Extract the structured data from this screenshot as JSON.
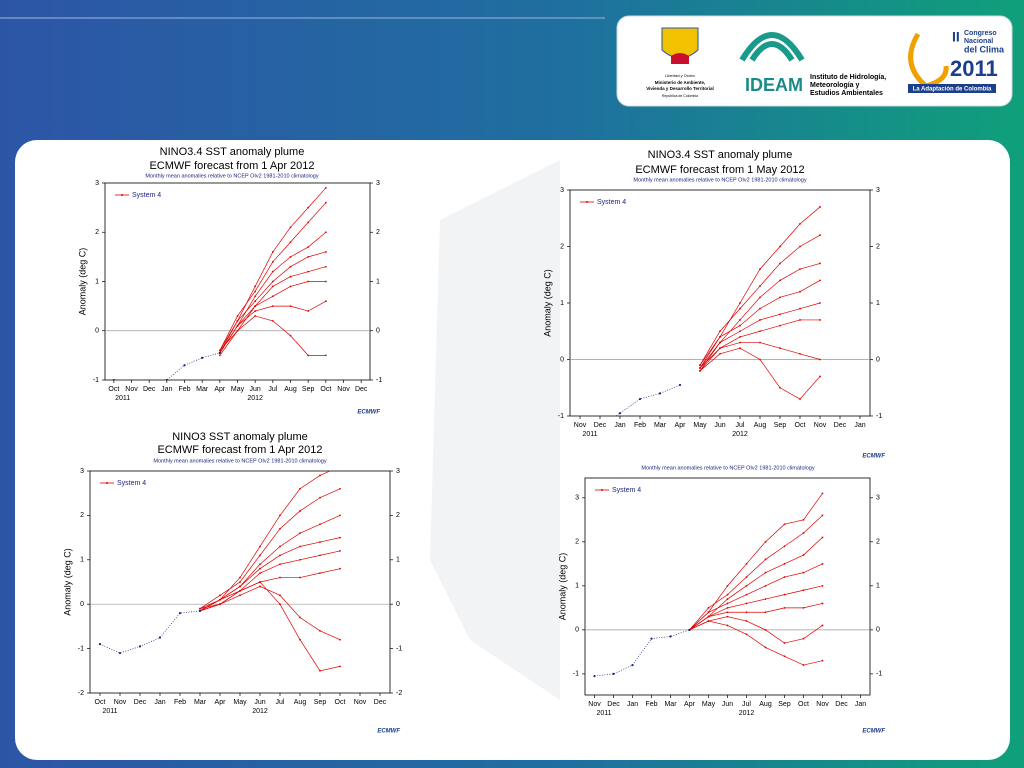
{
  "header": {
    "ministry": [
      "Libertad y Orden",
      "Ministerio de Ambiente,",
      "Vivienda y Desarrollo Territorial",
      "República de Colombia"
    ],
    "ideam": "IDEAM",
    "ideam_name": [
      "Instituto de Hidrología,",
      "Meteorología y",
      "Estudios Ambientales"
    ],
    "congress": [
      "II",
      "Congreso",
      "Nacional",
      "del Clima",
      "2011"
    ],
    "congress_tagline": "La Adaptación de Colombia"
  },
  "chart_data": [
    {
      "type": "plume",
      "title": [
        "NINO3.4 SST anomaly plume",
        "ECMWF forecast from 1 Apr 2012"
      ],
      "subtitle": "Monthly mean anomalies relative to NCEP OIv2 1981-2010 climatology",
      "y_label": "Anomaly (deg C)",
      "legend": "System 4",
      "source": "ECMWF",
      "categories": [
        "Oct",
        "Nov",
        "Dec",
        "Jan",
        "Feb",
        "Mar",
        "Apr",
        "May",
        "Jun",
        "Jul",
        "Aug",
        "Sep",
        "Oct",
        "Nov",
        "Dec"
      ],
      "year_labels": [
        "2011",
        "2012"
      ],
      "ylim": [
        -1,
        3
      ],
      "yticks": [
        -1,
        0,
        1,
        2,
        3
      ],
      "zero_line": true,
      "observed": {
        "color": "#1a237e",
        "values": [
          -1.0,
          -1.1,
          -1.2,
          -1.0,
          -0.7,
          -0.55,
          -0.45,
          null,
          null,
          null,
          null,
          null,
          null,
          null,
          null
        ]
      },
      "ensemble": {
        "color": "#e00000",
        "members": [
          [
            null,
            null,
            null,
            null,
            null,
            null,
            -0.45,
            0.2,
            0.9,
            1.6,
            2.1,
            2.5,
            2.9,
            null,
            null
          ],
          [
            null,
            null,
            null,
            null,
            null,
            null,
            -0.4,
            0.3,
            0.8,
            1.4,
            1.8,
            2.2,
            2.6,
            null,
            null
          ],
          [
            null,
            null,
            null,
            null,
            null,
            null,
            -0.45,
            0.1,
            0.7,
            1.2,
            1.5,
            1.7,
            2.0,
            null,
            null
          ],
          [
            null,
            null,
            null,
            null,
            null,
            null,
            -0.4,
            0.2,
            0.6,
            1.0,
            1.3,
            1.5,
            1.6,
            null,
            null
          ],
          [
            null,
            null,
            null,
            null,
            null,
            null,
            -0.45,
            0.1,
            0.5,
            0.9,
            1.1,
            1.2,
            1.3,
            null,
            null
          ],
          [
            null,
            null,
            null,
            null,
            null,
            null,
            -0.5,
            0.0,
            0.5,
            0.7,
            0.9,
            1.0,
            1.0,
            null,
            null
          ],
          [
            null,
            null,
            null,
            null,
            null,
            null,
            -0.45,
            0.1,
            0.4,
            0.5,
            0.5,
            0.4,
            0.6,
            null,
            null
          ],
          [
            null,
            null,
            null,
            null,
            null,
            null,
            -0.4,
            0.0,
            0.3,
            0.2,
            -0.1,
            -0.5,
            -0.5,
            null,
            null
          ]
        ]
      }
    },
    {
      "type": "plume",
      "title": [
        "NINO3.4 SST anomaly plume",
        "ECMWF forecast from 1 May 2012"
      ],
      "subtitle": "Monthly mean anomalies relative to NCEP OIv2 1981-2010 climatology",
      "y_label": "Anomaly (deg C)",
      "legend": "System 4",
      "source": "ECMWF",
      "categories": [
        "Nov",
        "Dec",
        "Jan",
        "Feb",
        "Mar",
        "Apr",
        "May",
        "Jun",
        "Jul",
        "Aug",
        "Sep",
        "Oct",
        "Nov",
        "Dec",
        "Jan"
      ],
      "year_labels": [
        "2011",
        "2012"
      ],
      "ylim": [
        -1,
        3
      ],
      "yticks": [
        -1,
        0,
        1,
        2,
        3
      ],
      "zero_line": true,
      "observed": {
        "color": "#1a237e",
        "values": [
          null,
          -1.2,
          -0.95,
          -0.7,
          -0.6,
          -0.45,
          null,
          null,
          null,
          null,
          null,
          null,
          null,
          null,
          null
        ]
      },
      "ensemble": {
        "color": "#e00000",
        "members": [
          [
            null,
            null,
            null,
            null,
            null,
            null,
            -0.15,
            0.4,
            1.0,
            1.6,
            2.0,
            2.4,
            2.7,
            null,
            null
          ],
          [
            null,
            null,
            null,
            null,
            null,
            null,
            -0.1,
            0.5,
            0.9,
            1.3,
            1.7,
            2.0,
            2.2,
            null,
            null
          ],
          [
            null,
            null,
            null,
            null,
            null,
            null,
            -0.2,
            0.3,
            0.7,
            1.1,
            1.4,
            1.6,
            1.7,
            null,
            null
          ],
          [
            null,
            null,
            null,
            null,
            null,
            null,
            -0.1,
            0.4,
            0.6,
            0.9,
            1.1,
            1.2,
            1.4,
            null,
            null
          ],
          [
            null,
            null,
            null,
            null,
            null,
            null,
            -0.15,
            0.3,
            0.5,
            0.7,
            0.8,
            0.9,
            1.0,
            null,
            null
          ],
          [
            null,
            null,
            null,
            null,
            null,
            null,
            -0.2,
            0.2,
            0.4,
            0.5,
            0.6,
            0.7,
            0.7,
            null,
            null
          ],
          [
            null,
            null,
            null,
            null,
            null,
            null,
            -0.15,
            0.2,
            0.3,
            0.3,
            0.2,
            0.1,
            0.0,
            null,
            null
          ],
          [
            null,
            null,
            null,
            null,
            null,
            null,
            -0.2,
            0.1,
            0.2,
            0.0,
            -0.5,
            -0.7,
            -0.3,
            null,
            null
          ]
        ]
      }
    },
    {
      "type": "plume",
      "title": [
        "NINO3 SST anomaly plume",
        "ECMWF forecast from 1 Apr 2012"
      ],
      "subtitle": "Monthly mean anomalies relative to NCEP OIv2 1981-2010 climatology",
      "y_label": "Anomaly (deg C)",
      "legend": "System 4",
      "source": "ECMWF",
      "categories": [
        "Oct",
        "Nov",
        "Dec",
        "Jan",
        "Feb",
        "Mar",
        "Apr",
        "May",
        "Jun",
        "Jul",
        "Aug",
        "Sep",
        "Oct",
        "Nov",
        "Dec"
      ],
      "year_labels": [
        "2011",
        "2012"
      ],
      "ylim": [
        -2,
        3
      ],
      "yticks": [
        -2,
        -1,
        0,
        1,
        2,
        3
      ],
      "zero_line": true,
      "observed": {
        "color": "#1a237e",
        "values": [
          -0.9,
          -1.1,
          -0.95,
          -0.75,
          -0.2,
          -0.15,
          null,
          null,
          null,
          null,
          null,
          null,
          null,
          null,
          null
        ]
      },
      "ensemble": {
        "color": "#e00000",
        "members": [
          [
            null,
            null,
            null,
            null,
            null,
            -0.15,
            0.1,
            0.6,
            1.3,
            2.0,
            2.6,
            2.9,
            3.1,
            null,
            null
          ],
          [
            null,
            null,
            null,
            null,
            null,
            -0.1,
            0.2,
            0.5,
            1.1,
            1.7,
            2.1,
            2.4,
            2.6,
            null,
            null
          ],
          [
            null,
            null,
            null,
            null,
            null,
            -0.15,
            0.1,
            0.4,
            0.9,
            1.3,
            1.6,
            1.8,
            2.0,
            null,
            null
          ],
          [
            null,
            null,
            null,
            null,
            null,
            -0.1,
            0.1,
            0.4,
            0.8,
            1.1,
            1.3,
            1.4,
            1.5,
            null,
            null
          ],
          [
            null,
            null,
            null,
            null,
            null,
            -0.15,
            0.0,
            0.3,
            0.7,
            0.9,
            1.0,
            1.1,
            1.2,
            null,
            null
          ],
          [
            null,
            null,
            null,
            null,
            null,
            -0.15,
            0.1,
            0.3,
            0.5,
            0.6,
            0.6,
            0.7,
            0.8,
            null,
            null
          ],
          [
            null,
            null,
            null,
            null,
            null,
            -0.1,
            0.0,
            0.2,
            0.4,
            0.2,
            -0.3,
            -0.6,
            -0.8,
            null,
            null
          ],
          [
            null,
            null,
            null,
            null,
            null,
            -0.15,
            0.0,
            0.3,
            0.5,
            0.0,
            -0.8,
            -1.5,
            -1.4,
            null,
            null
          ]
        ]
      }
    },
    {
      "type": "plume",
      "subtitle": "Monthly mean anomalies relative to NCEP OIv2 1981-2010 climatology",
      "y_label": "Anomaly (deg C)",
      "legend": "System 4",
      "source": "ECMWF",
      "categories": [
        "Nov",
        "Dec",
        "Jan",
        "Feb",
        "Mar",
        "Apr",
        "May",
        "Jun",
        "Jul",
        "Aug",
        "Sep",
        "Oct",
        "Nov",
        "Dec",
        "Jan"
      ],
      "year_labels": [
        "2011",
        "2012"
      ],
      "ylim": [
        -1.48,
        3.45
      ],
      "yticks": [
        -1,
        0,
        1,
        2,
        3
      ],
      "zero_line": true,
      "observed": {
        "color": "#1a237e",
        "values": [
          -1.05,
          -1.0,
          -0.8,
          -0.2,
          -0.15,
          0.0,
          null,
          null,
          null,
          null,
          null,
          null,
          null,
          null,
          null
        ]
      },
      "ensemble": {
        "color": "#e00000",
        "members": [
          [
            null,
            null,
            null,
            null,
            null,
            0.0,
            0.4,
            1.0,
            1.5,
            2.0,
            2.4,
            2.5,
            3.1,
            null,
            null
          ],
          [
            null,
            null,
            null,
            null,
            null,
            0.0,
            0.5,
            0.8,
            1.2,
            1.6,
            1.9,
            2.2,
            2.6,
            null,
            null
          ],
          [
            null,
            null,
            null,
            null,
            null,
            0.0,
            0.3,
            0.7,
            1.0,
            1.3,
            1.5,
            1.7,
            2.1,
            null,
            null
          ],
          [
            null,
            null,
            null,
            null,
            null,
            0.0,
            0.4,
            0.6,
            0.8,
            1.0,
            1.2,
            1.3,
            1.5,
            null,
            null
          ],
          [
            null,
            null,
            null,
            null,
            null,
            0.0,
            0.3,
            0.5,
            0.6,
            0.7,
            0.8,
            0.9,
            1.0,
            null,
            null
          ],
          [
            null,
            null,
            null,
            null,
            null,
            0.0,
            0.3,
            0.4,
            0.4,
            0.4,
            0.5,
            0.5,
            0.6,
            null,
            null
          ],
          [
            null,
            null,
            null,
            null,
            null,
            0.0,
            0.2,
            0.3,
            0.2,
            0.0,
            -0.3,
            -0.2,
            0.1,
            null,
            null
          ],
          [
            null,
            null,
            null,
            null,
            null,
            0.0,
            0.2,
            0.1,
            -0.1,
            -0.4,
            -0.6,
            -0.8,
            -0.7,
            null,
            null
          ]
        ]
      }
    }
  ]
}
